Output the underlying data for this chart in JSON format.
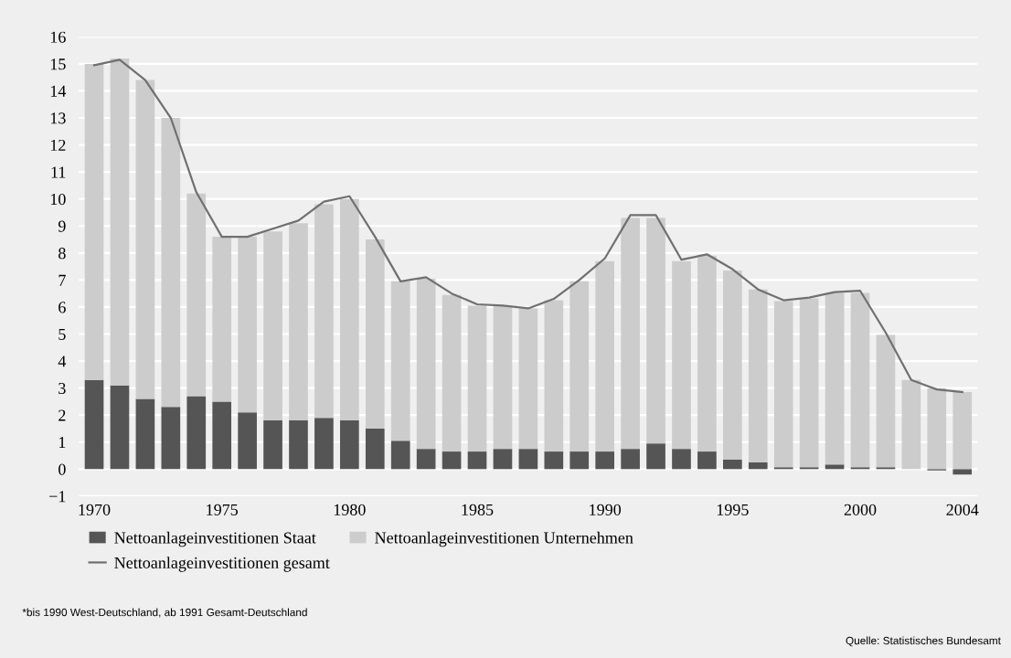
{
  "chart_data": {
    "type": "bar",
    "stacked": true,
    "categories": [
      "1970",
      null,
      null,
      null,
      null,
      "1975",
      null,
      null,
      null,
      null,
      "1980",
      null,
      null,
      null,
      null,
      "1985",
      null,
      null,
      null,
      null,
      "1990",
      null,
      null,
      null,
      null,
      "1995",
      null,
      null,
      null,
      null,
      "2000",
      null,
      null,
      null,
      "2004"
    ],
    "series": [
      {
        "name": "Nettoanlageinvestitionen Staat",
        "color": "#555555",
        "values": [
          3.3,
          3.1,
          2.6,
          2.3,
          2.7,
          2.5,
          2.1,
          1.8,
          1.8,
          1.9,
          1.8,
          1.5,
          1.05,
          0.75,
          0.65,
          0.65,
          0.75,
          0.75,
          0.65,
          0.65,
          0.65,
          0.75,
          0.95,
          0.75,
          0.65,
          0.35,
          0.25,
          0.07,
          0.07,
          0.17,
          0.07,
          0.07,
          0,
          -0.05,
          -0.2
        ]
      },
      {
        "name": "Nettoanlageinvestitionen Unternehmen",
        "color": "#cccccc",
        "values": [
          11.7,
          12.1,
          11.8,
          10.7,
          7.5,
          6.1,
          6.5,
          7.0,
          7.3,
          7.9,
          8.2,
          7.0,
          5.9,
          6.3,
          5.8,
          5.4,
          5.3,
          5.2,
          5.6,
          6.3,
          7.05,
          8.55,
          8.35,
          6.95,
          7.25,
          7.0,
          6.4,
          6.15,
          6.25,
          6.35,
          6.45,
          4.9,
          3.3,
          3.0,
          2.85
        ]
      },
      {
        "name": "Nettoanlageinvestitionen gesamt",
        "type": "line",
        "color": "#707070",
        "values": [
          14.95,
          15.15,
          14.4,
          13.0,
          10.25,
          8.6,
          8.6,
          8.9,
          9.2,
          9.9,
          10.1,
          8.6,
          6.95,
          7.1,
          6.5,
          6.1,
          6.05,
          5.95,
          6.3,
          7.0,
          7.8,
          9.4,
          9.4,
          7.75,
          7.95,
          7.4,
          6.65,
          6.25,
          6.35,
          6.55,
          6.6,
          5.05,
          3.3,
          2.95,
          2.85
        ]
      }
    ],
    "ylim": [
      -1,
      16
    ],
    "yticks": [
      {
        "value": -1,
        "label": "−1"
      },
      0,
      1,
      2,
      3,
      4,
      5,
      6,
      7,
      8,
      9,
      10,
      11,
      12,
      13,
      14,
      15,
      16
    ],
    "grid": "y",
    "legend": "bottom",
    "marker": "none",
    "line_style": "solid",
    "annotations": [
      "*bis 1990 West-Deutschland, ab 1991 Gesamt-Deutschland",
      "Quelle: Statistisches Bundesamt"
    ]
  }
}
